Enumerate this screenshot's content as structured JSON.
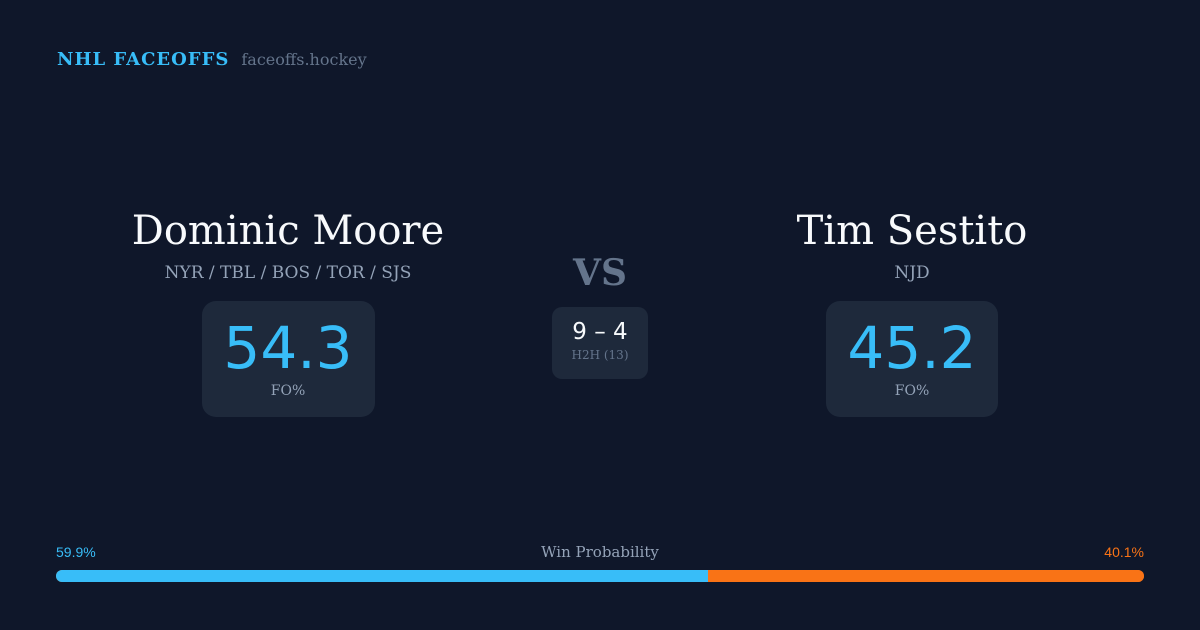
{
  "brand": {
    "title": "NHL FACEOFFS",
    "site": "faceoffs.hockey"
  },
  "player1": {
    "name": "Dominic Moore",
    "teams": "NYR / TBL / BOS / TOR / SJS",
    "fo_pct": "54.3",
    "fo_label": "FO%"
  },
  "player2": {
    "name": "Tim Sestito",
    "teams": "NJD",
    "fo_pct": "45.2",
    "fo_label": "FO%"
  },
  "vs": "VS",
  "h2h": {
    "score": "9 – 4",
    "label": "H2H (13)"
  },
  "win_probability": {
    "label": "Win Probability",
    "left": "59.9%",
    "right": "40.1%",
    "left_value": 59.9,
    "right_value": 40.1
  },
  "colors": {
    "background": "#0f172a",
    "card": "#1e293b",
    "accent": "#38bdf8",
    "opponent": "#f97316"
  }
}
